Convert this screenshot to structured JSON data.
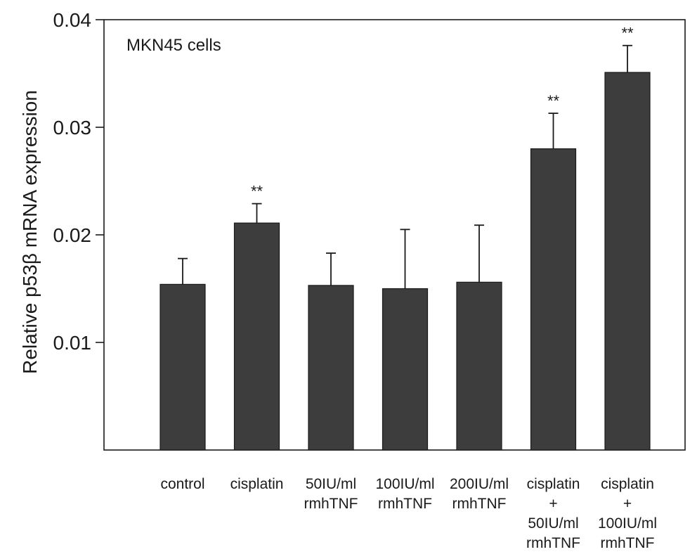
{
  "chart_data": {
    "type": "bar",
    "title": "MKN45 cells",
    "xlabel": "",
    "ylabel": "Relative p53β mRNA expression",
    "ylim": [
      0,
      0.04
    ],
    "yticks": [
      0.01,
      0.02,
      0.03,
      0.04
    ],
    "ytick_labels": [
      "0.01",
      "0.02",
      "0.03",
      "0.04"
    ],
    "categories": [
      [
        "control"
      ],
      [
        "cisplatin"
      ],
      [
        "50IU/ml",
        "rmhTNF"
      ],
      [
        "100IU/ml",
        "rmhTNF"
      ],
      [
        "200IU/ml",
        "rmhTNF"
      ],
      [
        "cisplatin",
        "+",
        "50IU/ml",
        "rmhTNF"
      ],
      [
        "cisplatin",
        "+",
        "100IU/ml",
        "rmhTNF"
      ]
    ],
    "values": [
      0.0154,
      0.0211,
      0.0153,
      0.015,
      0.0156,
      0.028,
      0.0351
    ],
    "error_upper": [
      0.0024,
      0.0018,
      0.003,
      0.0055,
      0.0053,
      0.0033,
      0.0025
    ],
    "significance": [
      "",
      "**",
      "",
      "",
      "",
      "**",
      "**"
    ],
    "bar_color": "#3d3d3d",
    "grid": false,
    "legend": "none"
  }
}
